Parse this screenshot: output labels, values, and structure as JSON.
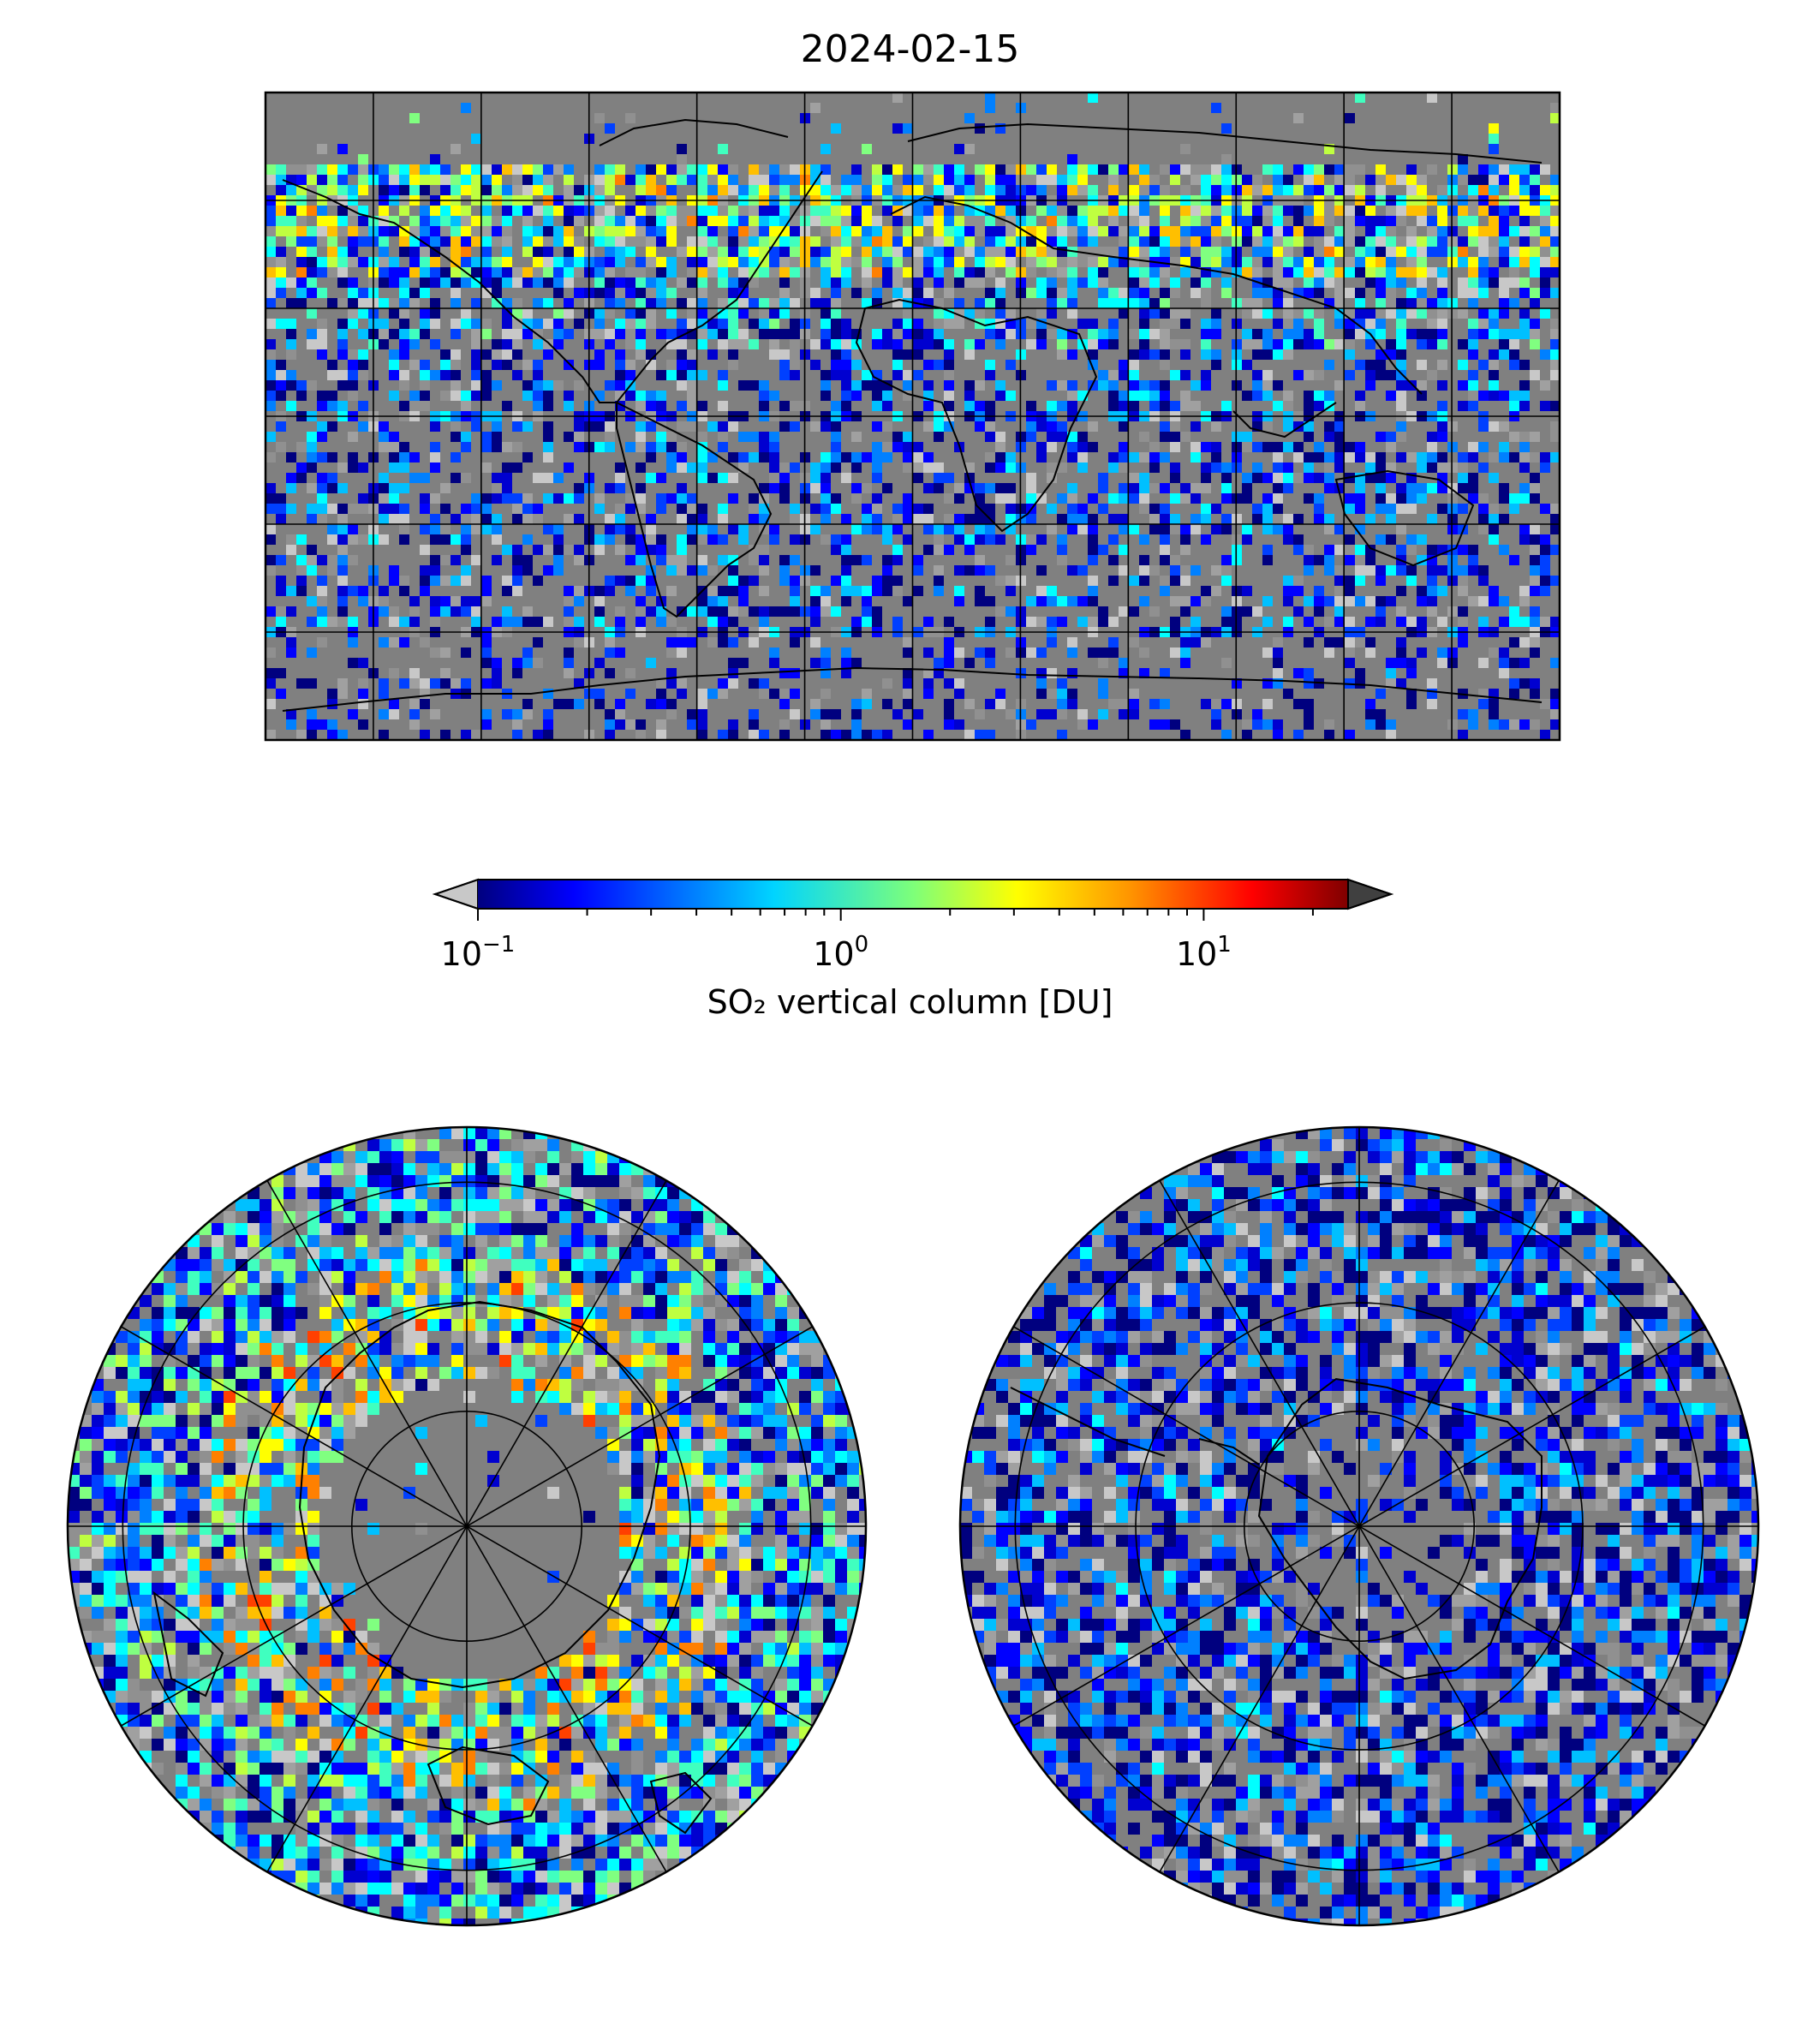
{
  "title": "2024-02-15",
  "colorbar": {
    "label": "SO₂ vertical column [DU]",
    "scale": "log",
    "range": [
      0.1,
      25
    ],
    "colormap": "jet",
    "under_color": "#c8c8c8",
    "over_color": "#404040",
    "ticks": [
      {
        "base": "10",
        "exp": "−1",
        "value": 0.1
      },
      {
        "base": "10",
        "exp": "0",
        "value": 1
      },
      {
        "base": "10",
        "exp": "1",
        "value": 10
      }
    ]
  },
  "colors": {
    "background_gray": "#808080",
    "jet": [
      "#00007f",
      "#0000ff",
      "#007fff",
      "#00ffff",
      "#7fff7f",
      "#ffff00",
      "#ff7f00",
      "#ff0000",
      "#7f0000"
    ]
  },
  "panels": [
    {
      "name": "global-map",
      "projection": "plate-carree",
      "gridlines": true
    },
    {
      "name": "north-polar-map",
      "projection": "north-polar-stereographic",
      "gridlines": true
    },
    {
      "name": "south-polar-map",
      "projection": "south-polar-stereographic",
      "gridlines": true
    }
  ]
}
